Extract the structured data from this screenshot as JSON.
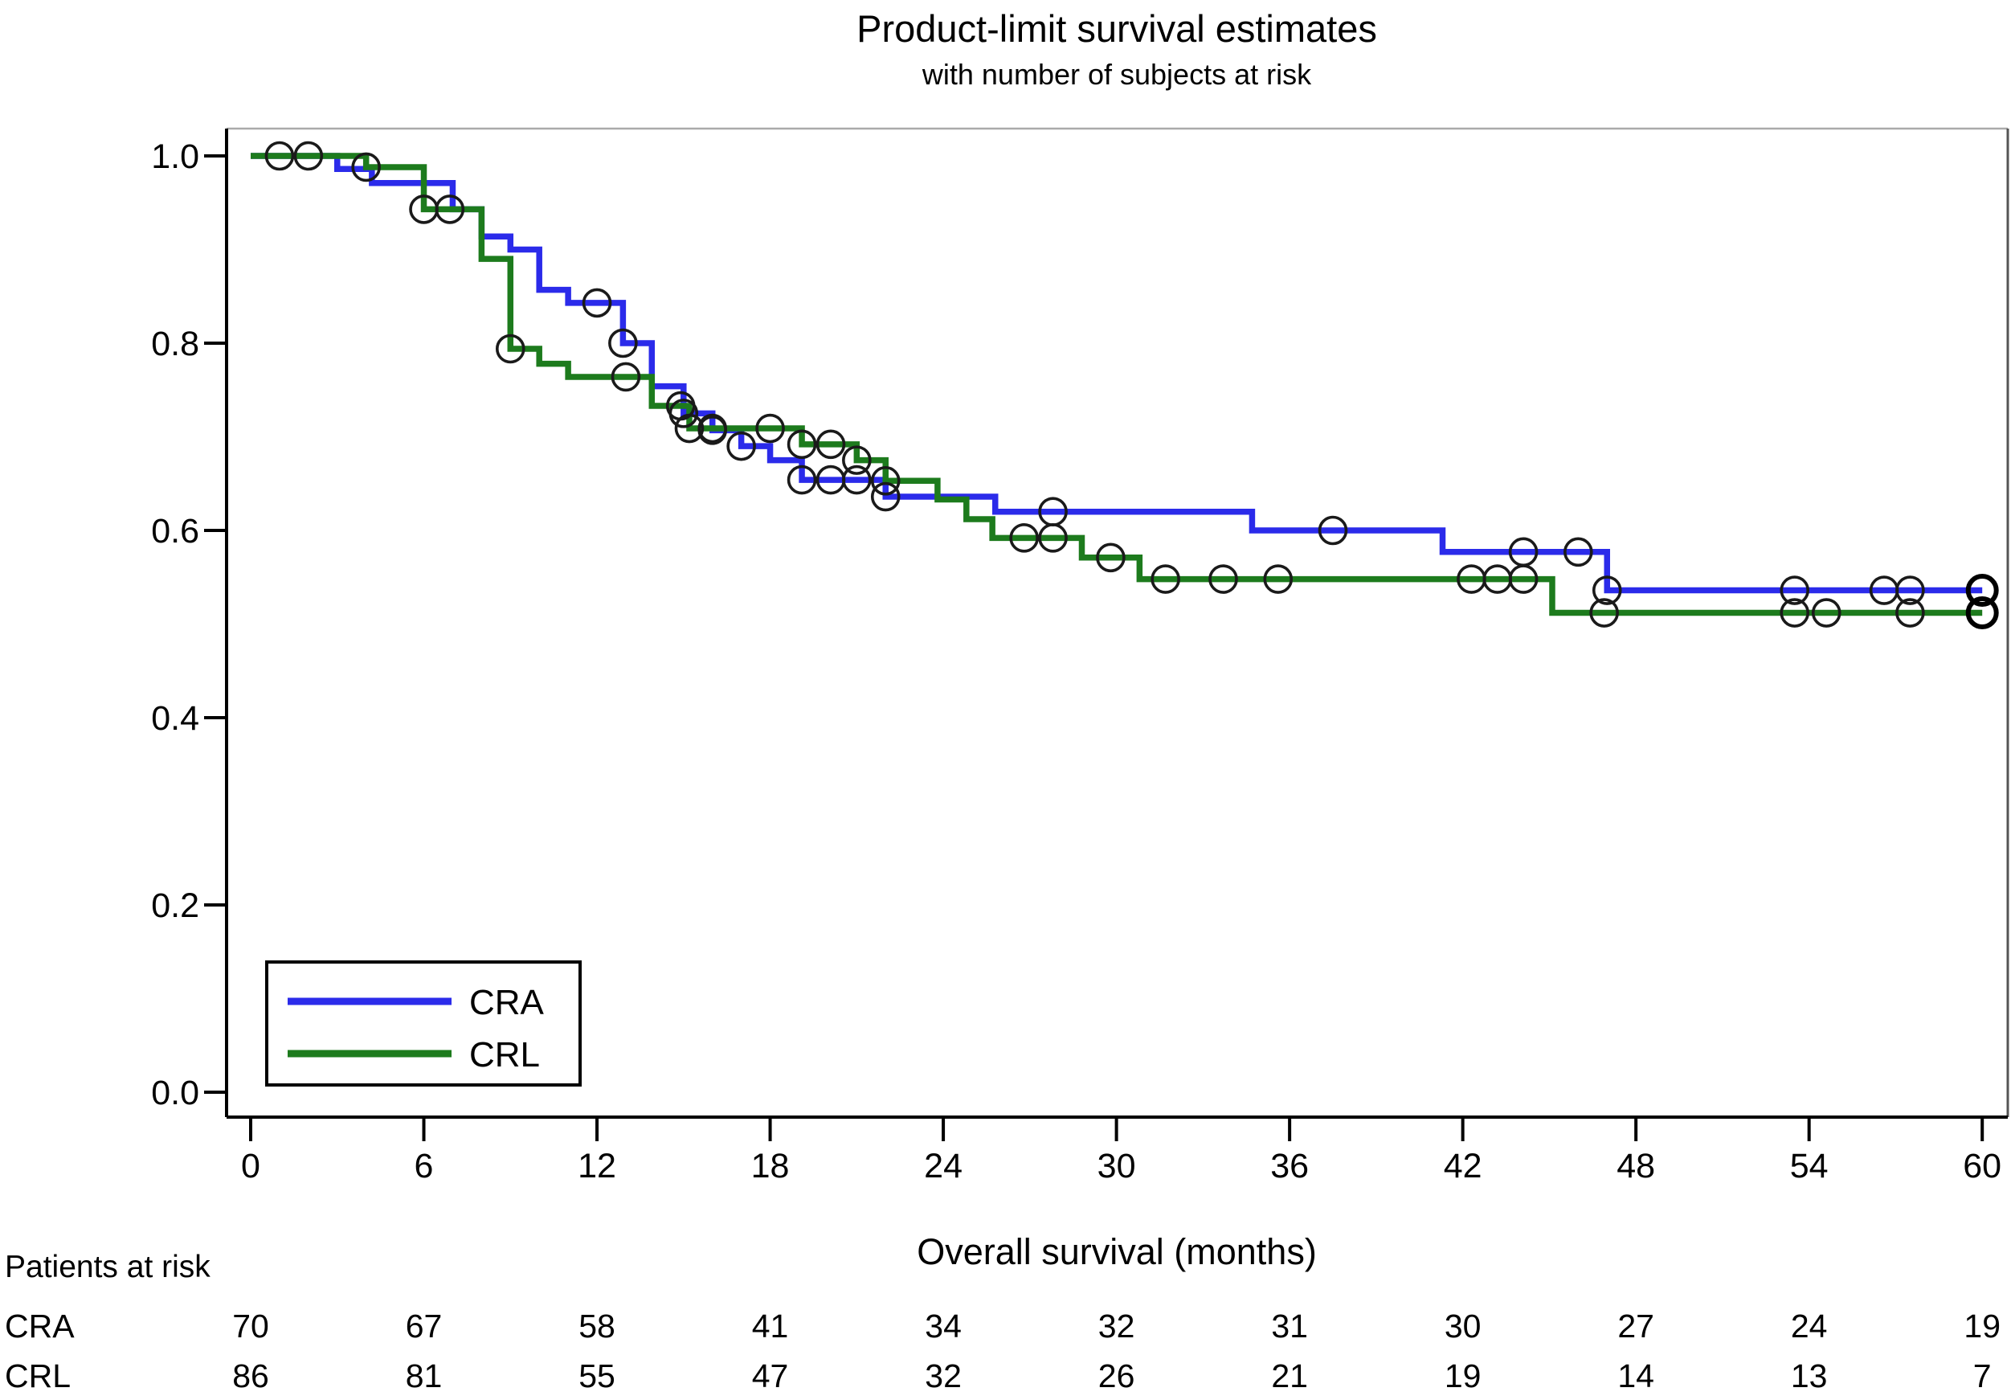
{
  "header": {
    "title": "Product-limit survival estimates",
    "subtitle": "with number of subjects at risk"
  },
  "chart_data": {
    "type": "line",
    "subtype": "kaplan-meier-step-survival",
    "title": "Product-limit survival estimates",
    "subtitle": "with number of subjects at risk",
    "xlabel": "Overall survival (months)",
    "ylabel": "",
    "xlim": [
      0,
      60
    ],
    "ylim": [
      0.0,
      1.0
    ],
    "xticks": [
      0,
      6,
      12,
      18,
      24,
      30,
      36,
      42,
      48,
      54,
      60
    ],
    "yticks": [
      1.0,
      0.8,
      0.6,
      0.4,
      0.2,
      0.0
    ],
    "ytick_labels": [
      "1.0",
      "0.8",
      "0.6",
      "0.4",
      "0.2",
      "0.0"
    ],
    "grid": false,
    "censor_marker": "open-circle",
    "legend": {
      "position": "inside-bottom-left",
      "entries": [
        {
          "label": "CRA",
          "color": "#2b2bea"
        },
        {
          "label": "CRL",
          "color": "#1d7b1d"
        }
      ]
    },
    "series": [
      {
        "name": "CRA",
        "color": "#2b2bea",
        "steps": [
          [
            0,
            1.0
          ],
          [
            3,
            0.986
          ],
          [
            4.2,
            0.971
          ],
          [
            7,
            0.943
          ],
          [
            8,
            0.914
          ],
          [
            9,
            0.9
          ],
          [
            10,
            0.857
          ],
          [
            11,
            0.843
          ],
          [
            12.9,
            0.8
          ],
          [
            13.9,
            0.754
          ],
          [
            15,
            0.725
          ],
          [
            16,
            0.707
          ],
          [
            17,
            0.69
          ],
          [
            18,
            0.675
          ],
          [
            19.1,
            0.654
          ],
          [
            22,
            0.636
          ],
          [
            25.8,
            0.62
          ],
          [
            34.7,
            0.6
          ],
          [
            41.3,
            0.577
          ],
          [
            47,
            0.536
          ]
        ],
        "end_time": 60,
        "censor_times": [
          12,
          12.9,
          15,
          16,
          17,
          19.1,
          20.1,
          21,
          22,
          27.8,
          37.5,
          44.1,
          46,
          47,
          53.5,
          56.6,
          57.5
        ],
        "end_marker_time": 60
      },
      {
        "name": "CRL",
        "color": "#1d7b1d",
        "steps": [
          [
            0,
            1.0
          ],
          [
            4,
            0.988
          ],
          [
            6,
            0.943
          ],
          [
            8,
            0.89
          ],
          [
            9,
            0.794
          ],
          [
            10,
            0.778
          ],
          [
            11,
            0.764
          ],
          [
            13.9,
            0.733
          ],
          [
            15.2,
            0.709
          ],
          [
            19.1,
            0.692
          ],
          [
            21,
            0.675
          ],
          [
            22,
            0.653
          ],
          [
            23.8,
            0.633
          ],
          [
            24.8,
            0.612
          ],
          [
            25.7,
            0.592
          ],
          [
            28.8,
            0.571
          ],
          [
            30.8,
            0.548
          ],
          [
            45.1,
            0.512
          ]
        ],
        "end_time": 60,
        "censor_times": [
          1,
          2,
          4,
          6,
          6.9,
          9,
          13,
          14.9,
          15.2,
          16,
          18,
          19.1,
          20.1,
          21,
          22,
          26.8,
          27.8,
          29.8,
          31.7,
          33.7,
          35.6,
          42.3,
          43.2,
          44.1,
          46.9,
          53.5,
          54.6,
          57.5
        ],
        "end_marker_time": 60
      }
    ]
  },
  "risk_table": {
    "caption": "Patients at risk",
    "time_points": [
      0,
      6,
      12,
      18,
      24,
      30,
      36,
      42,
      48,
      54,
      60
    ],
    "rows": [
      {
        "label": "CRA",
        "counts": [
          70,
          67,
          58,
          41,
          34,
          32,
          31,
          30,
          27,
          24,
          19
        ]
      },
      {
        "label": "CRL",
        "counts": [
          86,
          81,
          55,
          47,
          32,
          26,
          21,
          19,
          14,
          13,
          7
        ]
      }
    ]
  }
}
